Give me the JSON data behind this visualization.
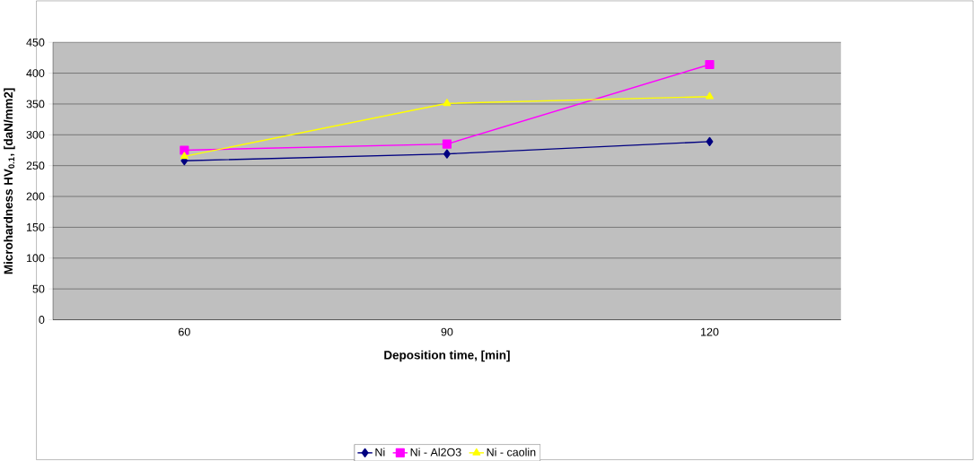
{
  "chart_data": {
    "type": "line",
    "xlabel": "Deposition time, [min]",
    "ylabel": "Microhardness HV$_{0.1}$, [daN/mm2]",
    "categories": [
      "60",
      "90",
      "120"
    ],
    "series": [
      {
        "name": "Ni",
        "color": "#000080",
        "marker": "diamond",
        "values": [
          258,
          269,
          289
        ]
      },
      {
        "name": "Ni - Al2O3",
        "color": "#ff00ff",
        "marker": "square",
        "values": [
          275,
          285,
          414
        ]
      },
      {
        "name": "Ni - caolin",
        "color": "#ffff00",
        "marker": "triangle",
        "values": [
          265,
          351,
          362
        ]
      }
    ],
    "ylim": [
      0,
      450
    ],
    "yticks": [
      0,
      50,
      100,
      150,
      200,
      250,
      300,
      350,
      400,
      450
    ],
    "grid": "y",
    "legend": "bottom",
    "line_style": "solid"
  }
}
